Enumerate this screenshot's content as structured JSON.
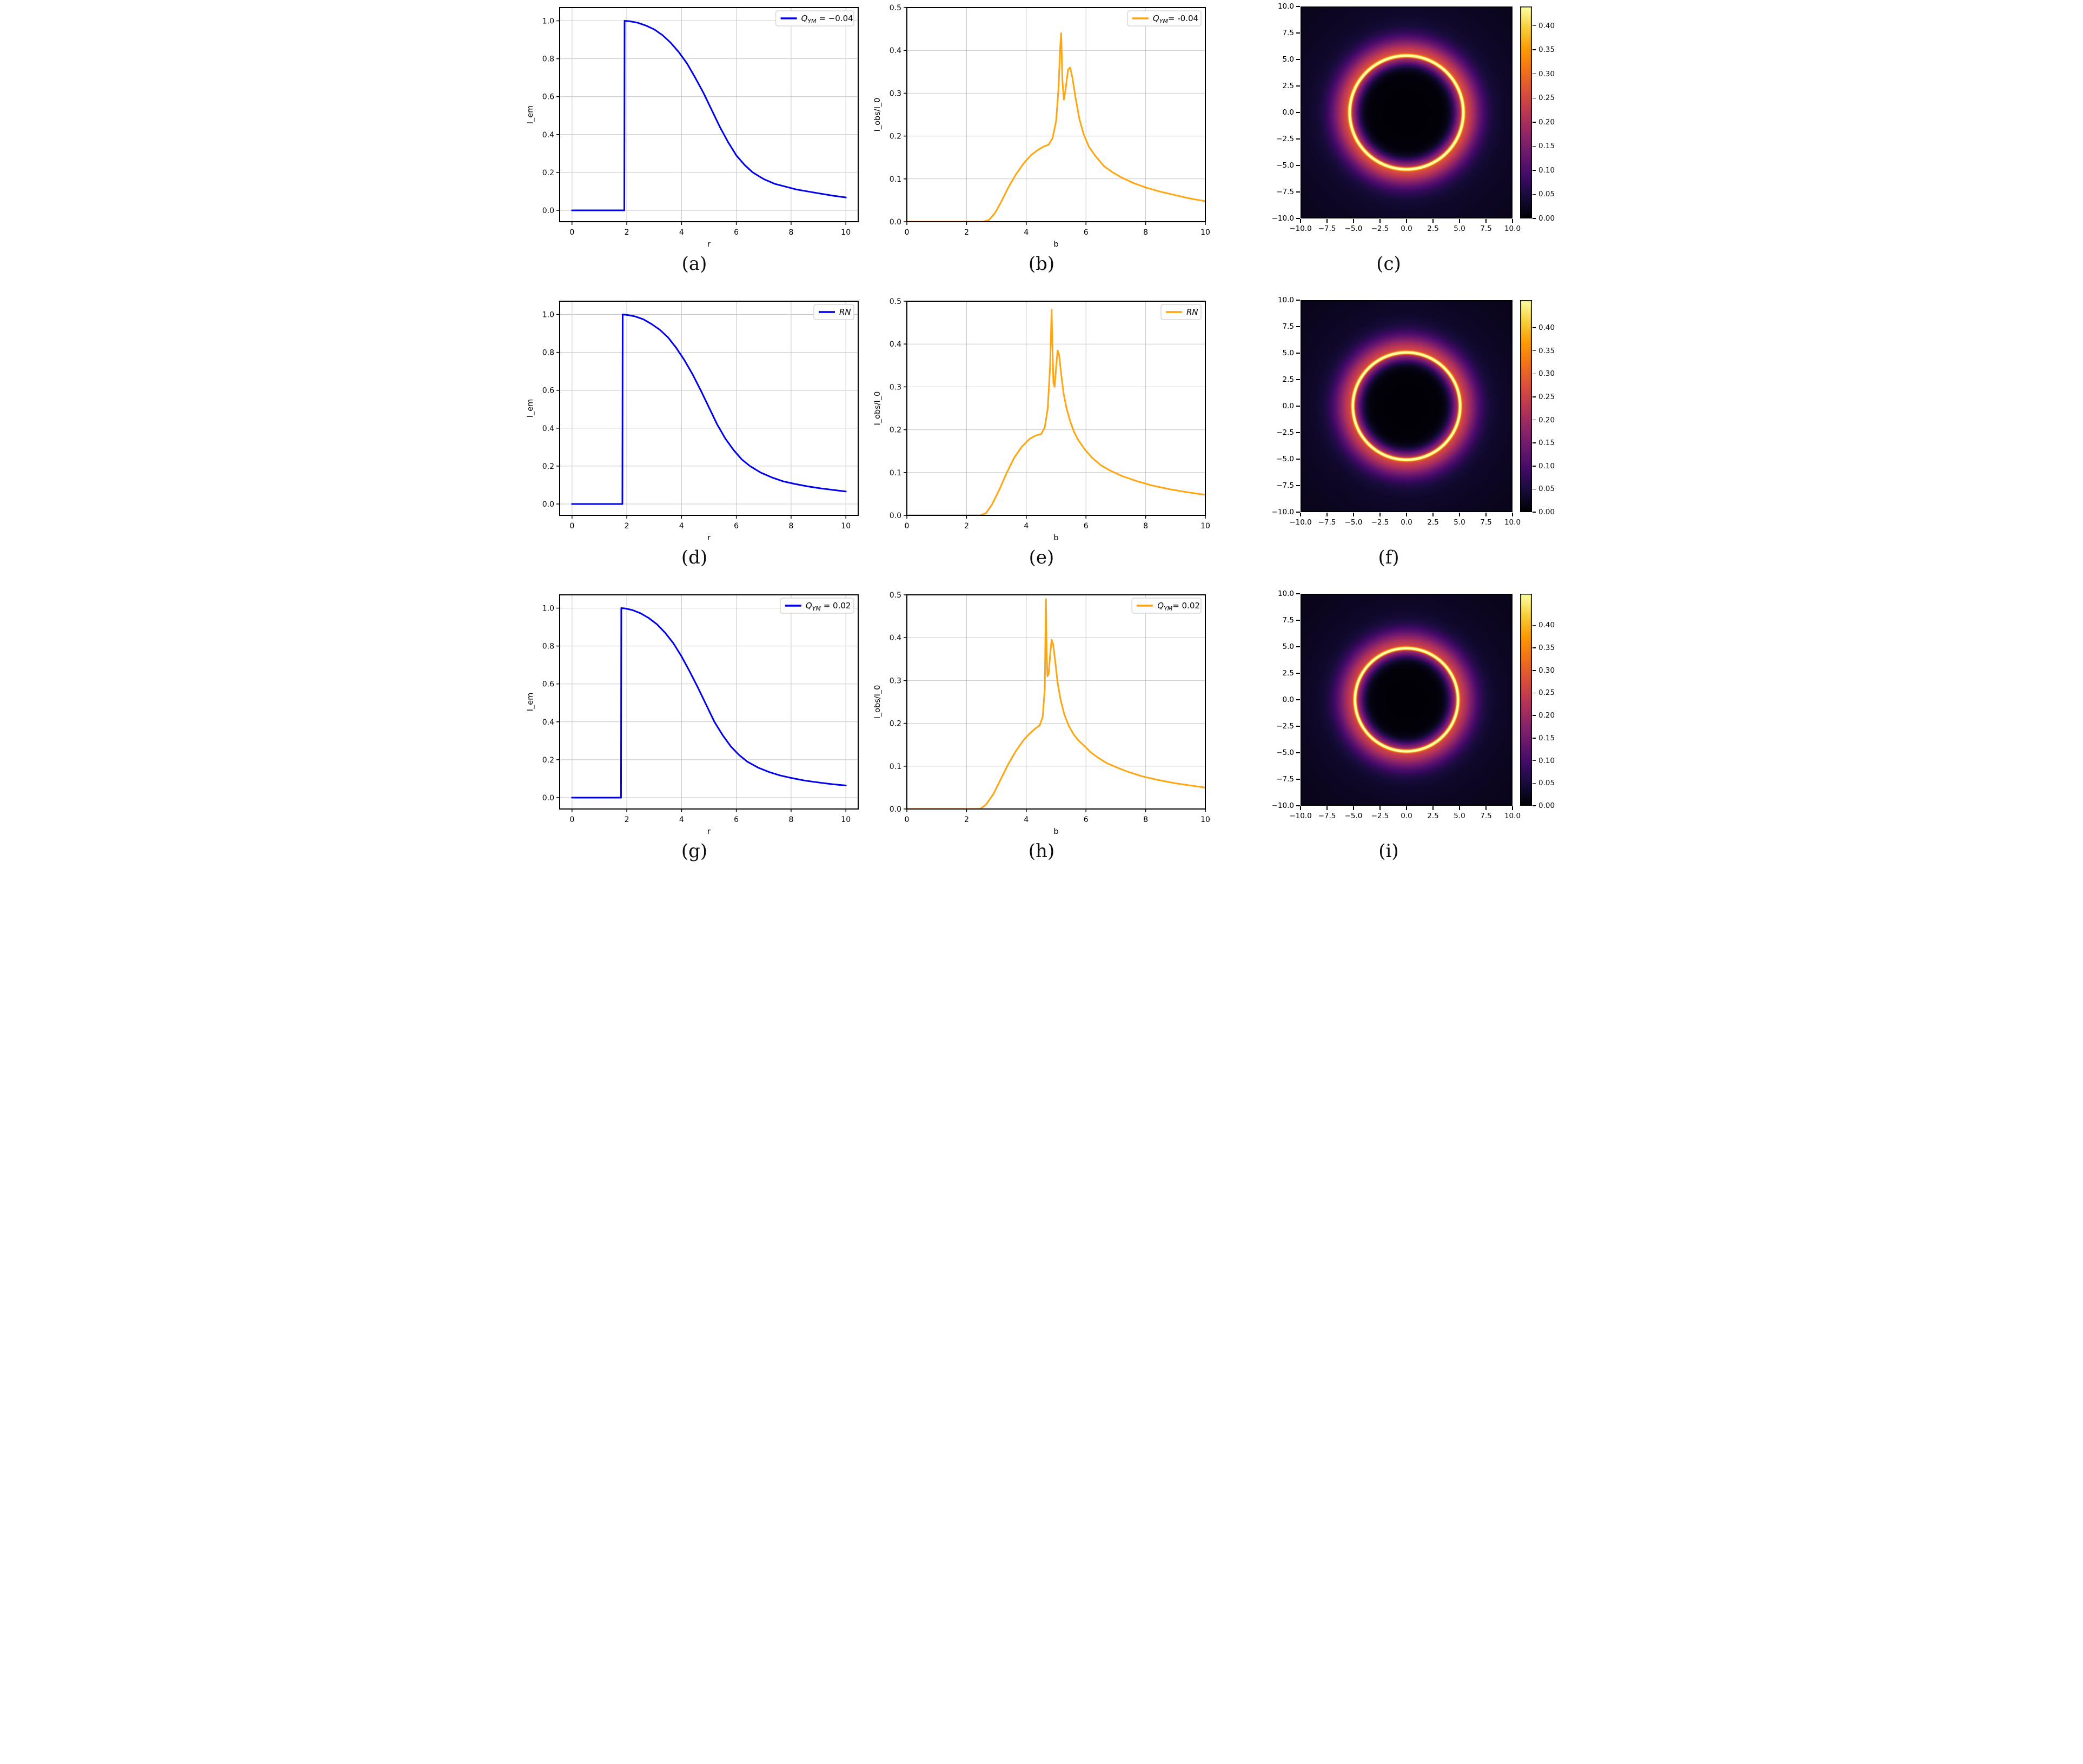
{
  "page": {
    "background": "#ffffff"
  },
  "colors": {
    "blue_line": "#0000ee",
    "orange_line": "#ffa510",
    "grid": "#c6c6c6",
    "spine": "#000000",
    "legend_border": "#d8d8d8",
    "legend_fill": "#ffffff"
  },
  "colormap": {
    "name": "inferno",
    "stops": [
      [
        0.0,
        [
          0,
          0,
          4
        ]
      ],
      [
        0.1,
        [
          22,
          11,
          57
        ]
      ],
      [
        0.2,
        [
          66,
          10,
          104
        ]
      ],
      [
        0.3,
        [
          106,
          23,
          110
        ]
      ],
      [
        0.4,
        [
          147,
          38,
          103
        ]
      ],
      [
        0.5,
        [
          188,
          55,
          84
        ]
      ],
      [
        0.6,
        [
          221,
          81,
          58
        ]
      ],
      [
        0.7,
        [
          243,
          114,
          25
        ]
      ],
      [
        0.8,
        [
          252,
          155,
          6
        ]
      ],
      [
        0.9,
        [
          246,
          207,
          59
        ]
      ],
      [
        1.0,
        [
          252,
          255,
          164
        ]
      ]
    ]
  },
  "chart_data": [
    {
      "id": "a",
      "caption": "(a)",
      "type": "line",
      "title": "",
      "xlabel": "r",
      "ylabel": "I_em",
      "xlim": [
        -0.45,
        10.45
      ],
      "ylim": [
        -0.06,
        1.07
      ],
      "grid": true,
      "xticks": {
        "values": [
          0,
          2,
          4,
          6,
          8,
          10
        ],
        "labels": [
          "0",
          "2",
          "4",
          "6",
          "8",
          "10"
        ]
      },
      "yticks": {
        "values": [
          0,
          0.2,
          0.4,
          0.6,
          0.8,
          1.0
        ],
        "labels": [
          "0.0",
          "0.2",
          "0.4",
          "0.6",
          "0.8",
          "1.0"
        ]
      },
      "legend": {
        "main": "Q",
        "sub": "YM",
        "tail": " = −0.04",
        "position": "upper right"
      },
      "series": [
        {
          "name": "Q_YM = −0.04",
          "color_key": "blue_line",
          "x": [
            0,
            1.91,
            1.92,
            2.1,
            2.4,
            2.7,
            3.0,
            3.3,
            3.6,
            3.9,
            4.2,
            4.5,
            4.8,
            5.1,
            5.4,
            5.7,
            6.0,
            6.3,
            6.6,
            7.0,
            7.4,
            7.8,
            8.2,
            8.6,
            9.0,
            9.5,
            10.0
          ],
          "y": [
            0,
            0,
            1.0,
            0.998,
            0.99,
            0.975,
            0.955,
            0.925,
            0.885,
            0.835,
            0.775,
            0.7,
            0.62,
            0.53,
            0.44,
            0.36,
            0.29,
            0.24,
            0.2,
            0.165,
            0.14,
            0.125,
            0.11,
            0.1,
            0.09,
            0.078,
            0.068
          ]
        }
      ]
    },
    {
      "id": "b",
      "caption": "(b)",
      "type": "line",
      "title": "",
      "xlabel": "b",
      "ylabel": "I_obs/I_0",
      "xlim": [
        0,
        10
      ],
      "ylim": [
        0,
        0.5
      ],
      "grid": true,
      "xticks": {
        "values": [
          0,
          2,
          4,
          6,
          8,
          10
        ],
        "labels": [
          "0",
          "2",
          "4",
          "6",
          "8",
          "10"
        ]
      },
      "yticks": {
        "values": [
          0,
          0.1,
          0.2,
          0.3,
          0.4,
          0.5
        ],
        "labels": [
          "0.0",
          "0.1",
          "0.2",
          "0.3",
          "0.4",
          "0.5"
        ]
      },
      "legend": {
        "main": "Q",
        "sub": "YM",
        "tail": "= -0.04",
        "position": "upper right"
      },
      "series": [
        {
          "name": "Q_YM= -0.04",
          "color_key": "orange_line",
          "x": [
            0,
            2.55,
            2.75,
            2.95,
            3.15,
            3.4,
            3.65,
            3.9,
            4.15,
            4.4,
            4.6,
            4.75,
            4.88,
            5.0,
            5.08,
            5.14,
            5.17,
            5.21,
            5.26,
            5.32,
            5.4,
            5.47,
            5.55,
            5.65,
            5.78,
            5.92,
            6.1,
            6.3,
            6.6,
            6.9,
            7.2,
            7.6,
            8.0,
            8.5,
            9.0,
            9.5,
            10.0
          ],
          "y": [
            0,
            0,
            0.004,
            0.02,
            0.045,
            0.08,
            0.11,
            0.135,
            0.155,
            0.168,
            0.176,
            0.18,
            0.195,
            0.235,
            0.31,
            0.41,
            0.44,
            0.33,
            0.285,
            0.31,
            0.355,
            0.36,
            0.335,
            0.29,
            0.24,
            0.205,
            0.175,
            0.155,
            0.13,
            0.115,
            0.103,
            0.09,
            0.08,
            0.07,
            0.062,
            0.054,
            0.048
          ]
        }
      ]
    },
    {
      "id": "c",
      "caption": "(c)",
      "type": "heatmap",
      "title": "",
      "xlabel": "",
      "ylabel": "",
      "xlim": [
        -10,
        10
      ],
      "ylim": [
        -10,
        10
      ],
      "xticks": {
        "values": [
          -10,
          -7.5,
          -5,
          -2.5,
          0,
          2.5,
          5,
          7.5,
          10
        ],
        "labels": [
          "−10.0",
          "−7.5",
          "−5.0",
          "−2.5",
          "0.0",
          "2.5",
          "5.0",
          "7.5",
          "10.0"
        ]
      },
      "yticks": {
        "values": [
          -10,
          -7.5,
          -5,
          -2.5,
          0,
          2.5,
          5,
          7.5,
          10
        ],
        "labels": [
          "−10.0",
          "−7.5",
          "−5.0",
          "−2.5",
          "0.0",
          "2.5",
          "5.0",
          "7.5",
          "10.0"
        ]
      },
      "colorbar": {
        "vmax": 0.44,
        "tick_values": [
          0,
          0.05,
          0.1,
          0.15,
          0.2,
          0.25,
          0.3,
          0.35,
          0.4
        ],
        "tick_labels": [
          "0.00",
          "0.05",
          "0.10",
          "0.15",
          "0.20",
          "0.25",
          "0.30",
          "0.35",
          "0.40"
        ]
      },
      "render": {
        "radius": 5.35,
        "ring_amp": 0.34,
        "ring_sigma": 0.1,
        "glow_amp": 0.2,
        "glow_sigma_out": 1.15,
        "glow_sigma_in": 0.62,
        "tail_amp": 0.05,
        "tail_scale": 3.5,
        "floor": 0.016
      }
    },
    {
      "id": "d",
      "caption": "(d)",
      "type": "line",
      "title": "",
      "xlabel": "r",
      "ylabel": "I_em",
      "xlim": [
        -0.45,
        10.45
      ],
      "ylim": [
        -0.06,
        1.07
      ],
      "grid": true,
      "xticks": {
        "values": [
          0,
          2,
          4,
          6,
          8,
          10
        ],
        "labels": [
          "0",
          "2",
          "4",
          "6",
          "8",
          "10"
        ]
      },
      "yticks": {
        "values": [
          0,
          0.2,
          0.4,
          0.6,
          0.8,
          1.0
        ],
        "labels": [
          "0.0",
          "0.2",
          "0.4",
          "0.6",
          "0.8",
          "1.0"
        ]
      },
      "legend": {
        "main": "RN",
        "sub": "",
        "tail": "",
        "position": "upper right"
      },
      "series": [
        {
          "name": "RN",
          "color_key": "blue_line",
          "x": [
            0,
            1.84,
            1.85,
            2.0,
            2.3,
            2.6,
            2.9,
            3.2,
            3.5,
            3.8,
            4.1,
            4.4,
            4.7,
            5.0,
            5.3,
            5.6,
            5.9,
            6.2,
            6.5,
            6.9,
            7.3,
            7.7,
            8.1,
            8.6,
            9.1,
            9.6,
            10.0
          ],
          "y": [
            0,
            0,
            1.0,
            0.998,
            0.99,
            0.975,
            0.95,
            0.92,
            0.88,
            0.825,
            0.76,
            0.685,
            0.6,
            0.51,
            0.42,
            0.345,
            0.285,
            0.235,
            0.2,
            0.165,
            0.14,
            0.12,
            0.107,
            0.093,
            0.082,
            0.073,
            0.066
          ]
        }
      ]
    },
    {
      "id": "e",
      "caption": "(e)",
      "type": "line",
      "title": "",
      "xlabel": "b",
      "ylabel": "I_obs/I_0",
      "xlim": [
        0,
        10
      ],
      "ylim": [
        0,
        0.5
      ],
      "grid": true,
      "xticks": {
        "values": [
          0,
          2,
          4,
          6,
          8,
          10
        ],
        "labels": [
          "0",
          "2",
          "4",
          "6",
          "8",
          "10"
        ]
      },
      "yticks": {
        "values": [
          0,
          0.1,
          0.2,
          0.3,
          0.4,
          0.5
        ],
        "labels": [
          "0.0",
          "0.1",
          "0.2",
          "0.3",
          "0.4",
          "0.5"
        ]
      },
      "legend": {
        "main": "RN",
        "sub": "",
        "tail": "",
        "position": "upper right"
      },
      "series": [
        {
          "name": "RN",
          "color_key": "orange_line",
          "x": [
            0,
            2.45,
            2.65,
            2.85,
            3.1,
            3.35,
            3.6,
            3.85,
            4.1,
            4.3,
            4.5,
            4.62,
            4.72,
            4.8,
            4.85,
            4.875,
            4.91,
            4.95,
            5.0,
            5.05,
            5.1,
            5.17,
            5.25,
            5.35,
            5.47,
            5.6,
            5.75,
            5.95,
            6.2,
            6.5,
            6.8,
            7.2,
            7.7,
            8.2,
            8.8,
            9.4,
            10.0
          ],
          "y": [
            0,
            0,
            0.005,
            0.025,
            0.06,
            0.1,
            0.135,
            0.16,
            0.178,
            0.186,
            0.19,
            0.205,
            0.25,
            0.35,
            0.48,
            0.4,
            0.31,
            0.3,
            0.345,
            0.385,
            0.375,
            0.33,
            0.285,
            0.25,
            0.22,
            0.195,
            0.175,
            0.155,
            0.135,
            0.117,
            0.105,
            0.092,
            0.08,
            0.07,
            0.061,
            0.054,
            0.048
          ]
        }
      ]
    },
    {
      "id": "f",
      "caption": "(f)",
      "type": "heatmap",
      "title": "",
      "xlabel": "",
      "ylabel": "",
      "xlim": [
        -10,
        10
      ],
      "ylim": [
        -10,
        10
      ],
      "xticks": {
        "values": [
          -10,
          -7.5,
          -5,
          -2.5,
          0,
          2.5,
          5,
          7.5,
          10
        ],
        "labels": [
          "−10.0",
          "−7.5",
          "−5.0",
          "−2.5",
          "0.0",
          "2.5",
          "5.0",
          "7.5",
          "10.0"
        ]
      },
      "yticks": {
        "values": [
          -10,
          -7.5,
          -5,
          -2.5,
          0,
          2.5,
          5,
          7.5,
          10
        ],
        "labels": [
          "−10.0",
          "−7.5",
          "−5.0",
          "−2.5",
          "0.0",
          "2.5",
          "5.0",
          "7.5",
          "10.0"
        ]
      },
      "colorbar": {
        "vmax": 0.46,
        "tick_values": [
          0,
          0.05,
          0.1,
          0.15,
          0.2,
          0.25,
          0.3,
          0.35,
          0.4
        ],
        "tick_labels": [
          "0.00",
          "0.05",
          "0.10",
          "0.15",
          "0.20",
          "0.25",
          "0.30",
          "0.35",
          "0.40"
        ]
      },
      "render": {
        "radius": 5.05,
        "ring_amp": 0.36,
        "ring_sigma": 0.1,
        "glow_amp": 0.2,
        "glow_sigma_out": 1.15,
        "glow_sigma_in": 0.6,
        "tail_amp": 0.05,
        "tail_scale": 3.5,
        "floor": 0.016
      }
    },
    {
      "id": "g",
      "caption": "(g)",
      "type": "line",
      "title": "",
      "xlabel": "r",
      "ylabel": "I_em",
      "xlim": [
        -0.45,
        10.45
      ],
      "ylim": [
        -0.06,
        1.07
      ],
      "grid": true,
      "xticks": {
        "values": [
          0,
          2,
          4,
          6,
          8,
          10
        ],
        "labels": [
          "0",
          "2",
          "4",
          "6",
          "8",
          "10"
        ]
      },
      "yticks": {
        "values": [
          0,
          0.2,
          0.4,
          0.6,
          0.8,
          1.0
        ],
        "labels": [
          "0.0",
          "0.2",
          "0.4",
          "0.6",
          "0.8",
          "1.0"
        ]
      },
      "legend": {
        "main": "Q",
        "sub": "YM",
        "tail": " = 0.02",
        "position": "upper right"
      },
      "series": [
        {
          "name": "Q_YM = 0.02",
          "color_key": "blue_line",
          "x": [
            0,
            1.79,
            1.8,
            1.95,
            2.2,
            2.5,
            2.8,
            3.1,
            3.4,
            3.7,
            4.0,
            4.3,
            4.6,
            4.9,
            5.2,
            5.5,
            5.8,
            6.1,
            6.4,
            6.8,
            7.2,
            7.6,
            8.0,
            8.5,
            9.0,
            9.5,
            10.0
          ],
          "y": [
            0,
            0,
            1.0,
            0.998,
            0.99,
            0.973,
            0.948,
            0.915,
            0.87,
            0.815,
            0.745,
            0.665,
            0.58,
            0.49,
            0.4,
            0.33,
            0.27,
            0.225,
            0.19,
            0.158,
            0.135,
            0.117,
            0.104,
            0.09,
            0.08,
            0.071,
            0.064
          ]
        }
      ]
    },
    {
      "id": "h",
      "caption": "(h)",
      "type": "line",
      "title": "",
      "xlabel": "b",
      "ylabel": "I_obs/I_0",
      "xlim": [
        0,
        10
      ],
      "ylim": [
        0,
        0.5
      ],
      "grid": true,
      "xticks": {
        "values": [
          0,
          2,
          4,
          6,
          8,
          10
        ],
        "labels": [
          "0",
          "2",
          "4",
          "6",
          "8",
          "10"
        ]
      },
      "yticks": {
        "values": [
          0,
          0.1,
          0.2,
          0.3,
          0.4,
          0.5
        ],
        "labels": [
          "0.0",
          "0.1",
          "0.2",
          "0.3",
          "0.4",
          "0.5"
        ]
      },
      "legend": {
        "main": "Q",
        "sub": "YM",
        "tail": "= 0.02",
        "position": "upper right"
      },
      "series": [
        {
          "name": "Q_YM= 0.02",
          "color_key": "orange_line",
          "x": [
            0,
            2.45,
            2.65,
            2.9,
            3.15,
            3.4,
            3.65,
            3.9,
            4.1,
            4.3,
            4.45,
            4.55,
            4.62,
            4.66,
            4.685,
            4.71,
            4.75,
            4.8,
            4.85,
            4.9,
            4.97,
            5.05,
            5.15,
            5.28,
            5.42,
            5.58,
            5.75,
            5.95,
            6.15,
            6.4,
            6.7,
            7.0,
            7.4,
            7.9,
            8.4,
            9.0,
            9.5,
            10.0
          ],
          "y": [
            0,
            0,
            0.01,
            0.035,
            0.07,
            0.105,
            0.135,
            0.16,
            0.175,
            0.188,
            0.195,
            0.215,
            0.28,
            0.49,
            0.36,
            0.31,
            0.315,
            0.36,
            0.395,
            0.385,
            0.345,
            0.295,
            0.255,
            0.22,
            0.195,
            0.175,
            0.16,
            0.147,
            0.133,
            0.12,
            0.107,
            0.098,
            0.087,
            0.076,
            0.068,
            0.06,
            0.055,
            0.05
          ]
        }
      ]
    },
    {
      "id": "i",
      "caption": "(i)",
      "type": "heatmap",
      "title": "",
      "xlabel": "",
      "ylabel": "",
      "xlim": [
        -10,
        10
      ],
      "ylim": [
        -10,
        10
      ],
      "xticks": {
        "values": [
          -10,
          -7.5,
          -5,
          -2.5,
          0,
          2.5,
          5,
          7.5,
          10
        ],
        "labels": [
          "−10.0",
          "−7.5",
          "−5.0",
          "−2.5",
          "0.0",
          "2.5",
          "5.0",
          "7.5",
          "10.0"
        ]
      },
      "yticks": {
        "values": [
          -10,
          -7.5,
          -5,
          -2.5,
          0,
          2.5,
          5,
          7.5,
          10
        ],
        "labels": [
          "−10.0",
          "−7.5",
          "−5.0",
          "−2.5",
          "0.0",
          "2.5",
          "5.0",
          "7.5",
          "10.0"
        ]
      },
      "colorbar": {
        "vmax": 0.47,
        "tick_values": [
          0,
          0.05,
          0.1,
          0.15,
          0.2,
          0.25,
          0.3,
          0.35,
          0.4
        ],
        "tick_labels": [
          "0.00",
          "0.05",
          "0.10",
          "0.15",
          "0.20",
          "0.25",
          "0.30",
          "0.35",
          "0.40"
        ]
      },
      "render": {
        "radius": 4.85,
        "ring_amp": 0.37,
        "ring_sigma": 0.1,
        "glow_amp": 0.2,
        "glow_sigma_out": 1.15,
        "glow_sigma_in": 0.58,
        "tail_amp": 0.05,
        "tail_scale": 3.5,
        "floor": 0.016
      }
    }
  ]
}
